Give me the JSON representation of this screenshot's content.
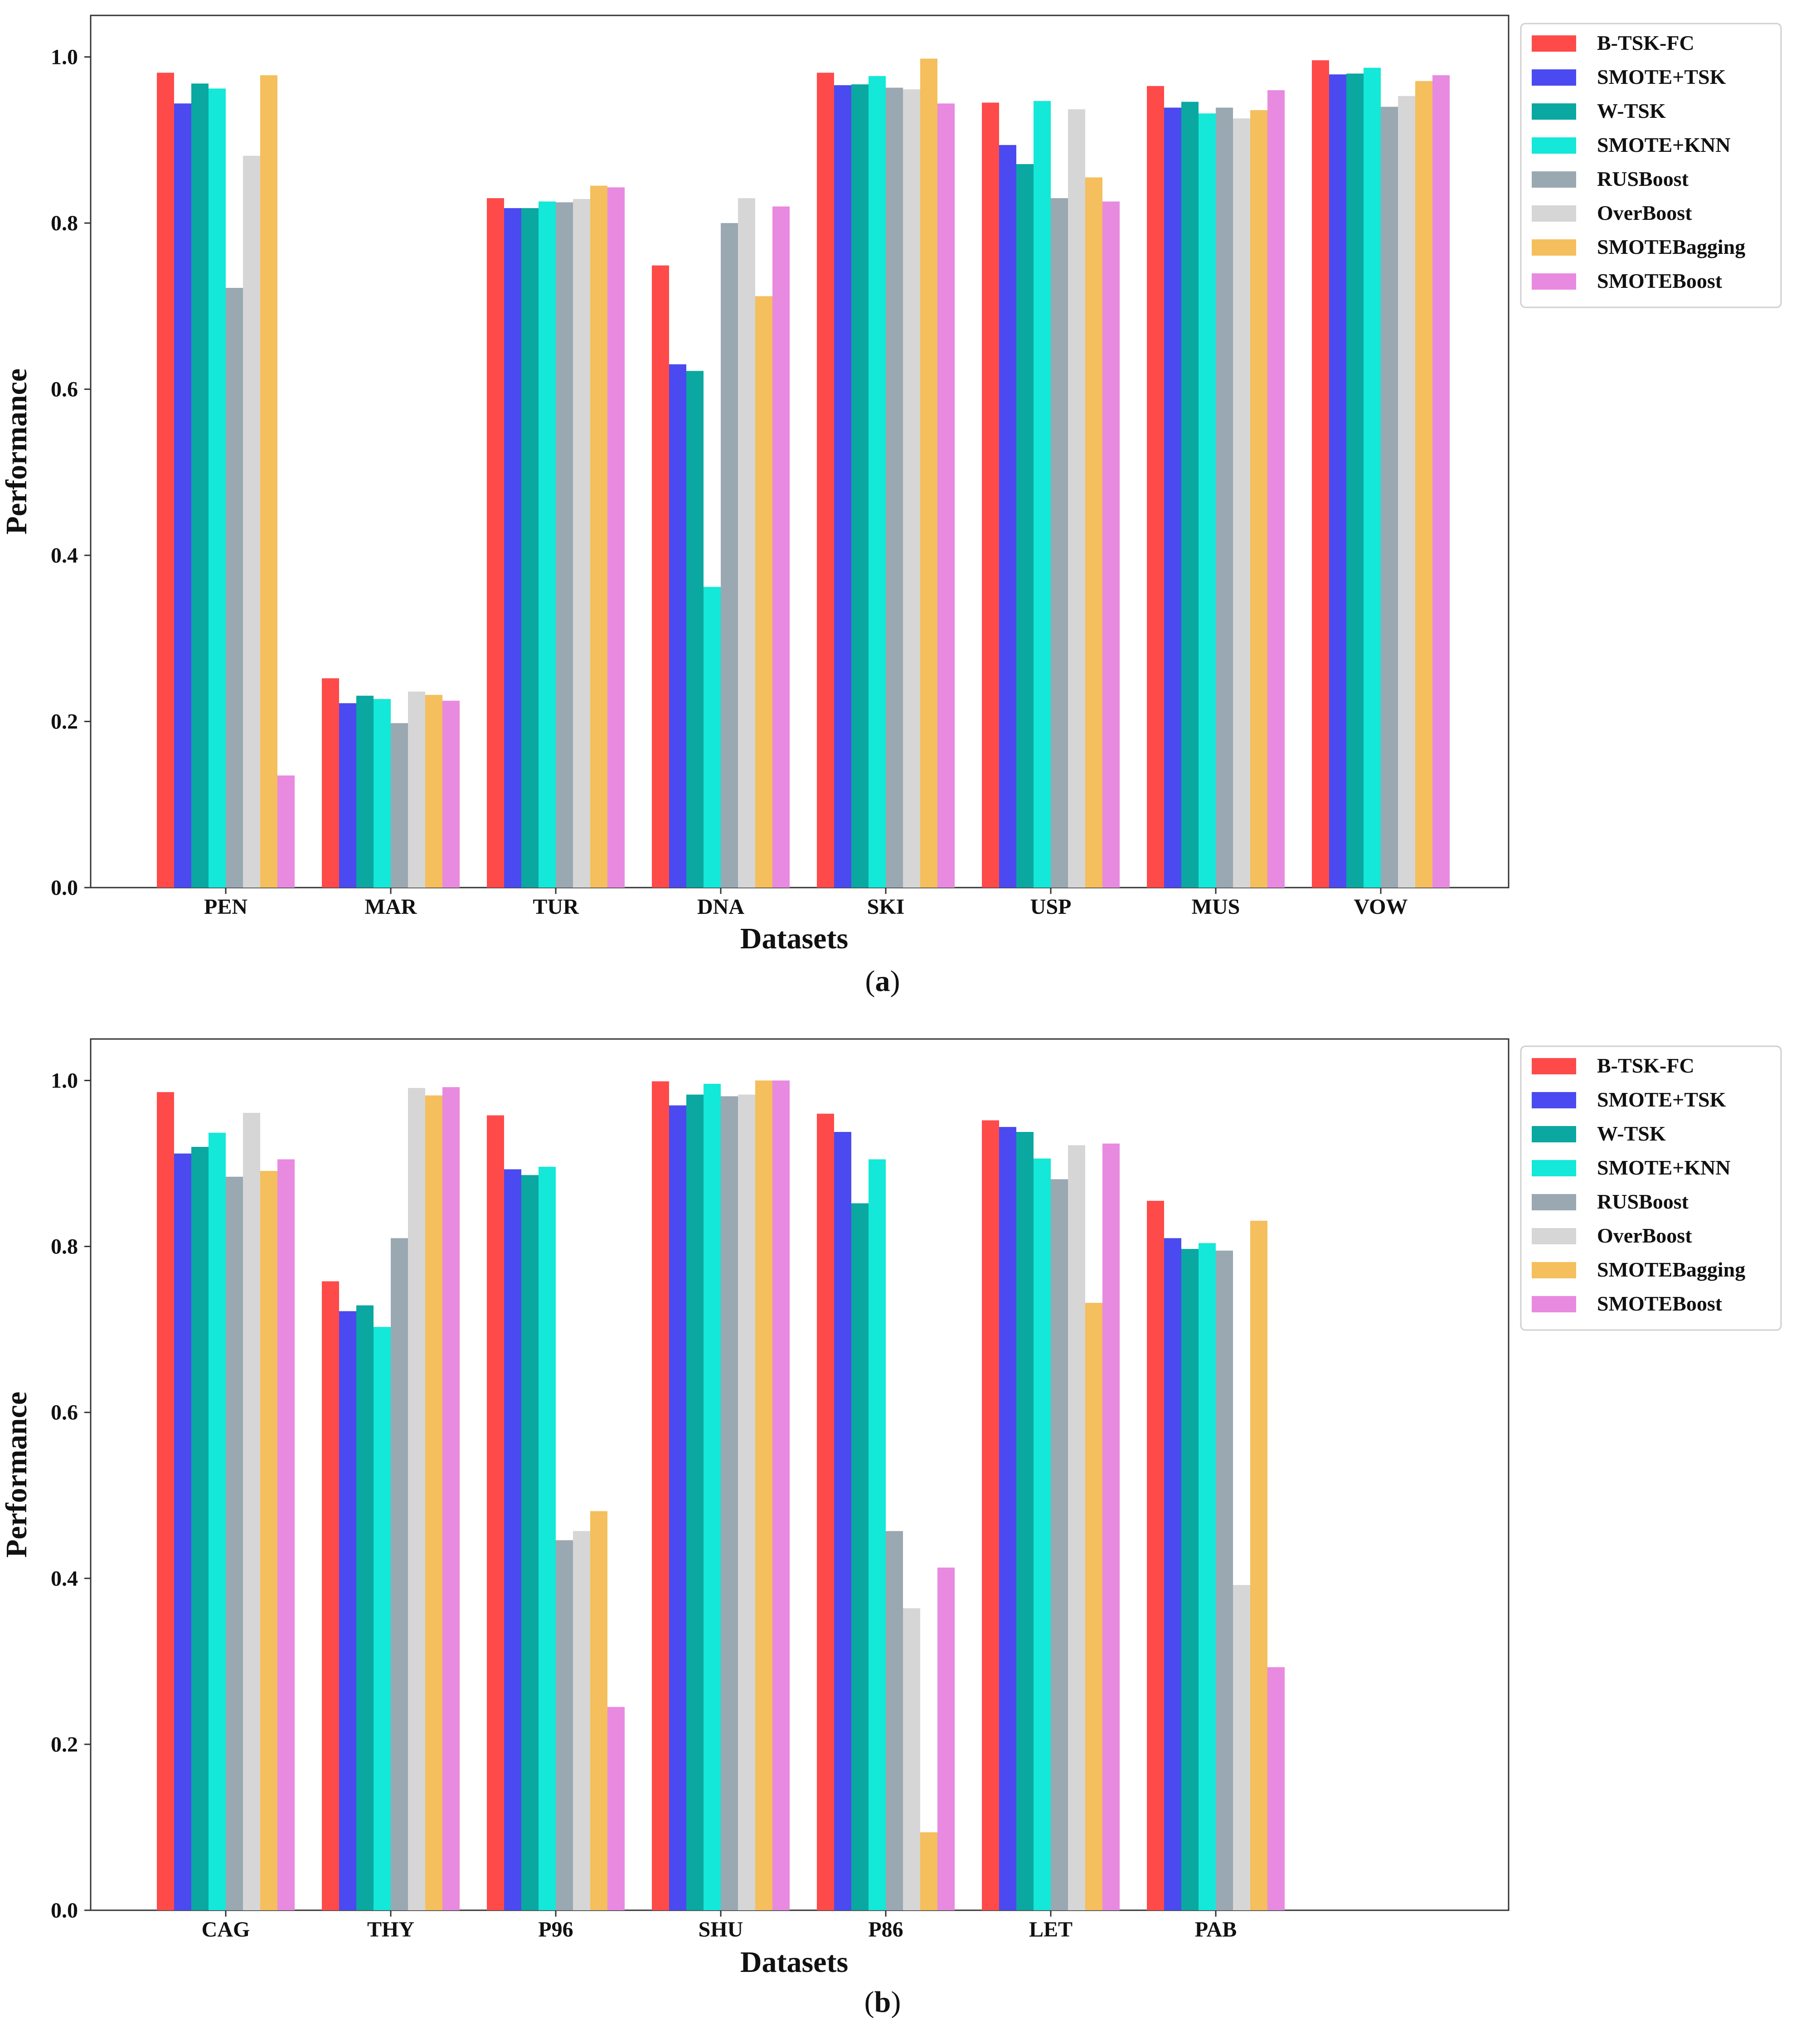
{
  "chart_data": [
    {
      "type": "bar",
      "caption": "a",
      "xlabel": "Datasets",
      "ylabel": "Performance",
      "ylim": [
        0,
        1.05
      ],
      "yticks": [
        "0.0",
        "0.2",
        "0.4",
        "0.6",
        "0.8",
        "1.0"
      ],
      "legend_position": "outside-right-top",
      "categories": [
        "PEN",
        "MAR",
        "TUR",
        "DNA",
        "SKI",
        "USP",
        "MUS",
        "VOW"
      ],
      "series": [
        {
          "name": "B-TSK-FC",
          "color": "#ff4a4a",
          "values": [
            0.981,
            0.252,
            0.83,
            0.749,
            0.981,
            0.945,
            0.965,
            0.996
          ]
        },
        {
          "name": "SMOTE+TSK",
          "color": "#4a4af0",
          "values": [
            0.944,
            0.222,
            0.818,
            0.63,
            0.966,
            0.894,
            0.939,
            0.979
          ]
        },
        {
          "name": "W-TSK",
          "color": "#0aa8a0",
          "values": [
            0.968,
            0.231,
            0.818,
            0.622,
            0.967,
            0.871,
            0.946,
            0.98
          ]
        },
        {
          "name": "SMOTE+KNN",
          "color": "#14e8d8",
          "values": [
            0.962,
            0.227,
            0.826,
            0.362,
            0.977,
            0.947,
            0.932,
            0.987
          ]
        },
        {
          "name": "RUSBoost",
          "color": "#9aa8b2",
          "values": [
            0.722,
            0.198,
            0.825,
            0.8,
            0.963,
            0.83,
            0.939,
            0.94
          ]
        },
        {
          "name": "OverBoost",
          "color": "#d6d6d6",
          "values": [
            0.881,
            0.236,
            0.829,
            0.83,
            0.961,
            0.937,
            0.926,
            0.953
          ]
        },
        {
          "name": "SMOTEBagging",
          "color": "#f4bf5c",
          "values": [
            0.978,
            0.232,
            0.845,
            0.712,
            0.998,
            0.855,
            0.936,
            0.971
          ]
        },
        {
          "name": "SMOTEBoost",
          "color": "#e88ae0",
          "values": [
            0.135,
            0.225,
            0.843,
            0.82,
            0.944,
            0.826,
            0.96,
            0.978
          ]
        }
      ]
    },
    {
      "type": "bar",
      "caption": "b",
      "xlabel": "Datasets",
      "ylabel": "Performance",
      "ylim": [
        0,
        1.05
      ],
      "yticks": [
        "0.0",
        "0.2",
        "0.4",
        "0.6",
        "0.8",
        "1.0"
      ],
      "legend_position": "outside-right-top",
      "categories": [
        "CAG",
        "THY",
        "P96",
        "SHU",
        "P86",
        "LET",
        "PAB"
      ],
      "series": [
        {
          "name": "B-TSK-FC",
          "color": "#ff4a4a",
          "values": [
            0.986,
            0.758,
            0.958,
            0.999,
            0.96,
            0.952,
            0.855
          ]
        },
        {
          "name": "SMOTE+TSK",
          "color": "#4a4af0",
          "values": [
            0.912,
            0.722,
            0.893,
            0.97,
            0.938,
            0.944,
            0.81
          ]
        },
        {
          "name": "W-TSK",
          "color": "#0aa8a0",
          "values": [
            0.92,
            0.729,
            0.886,
            0.983,
            0.852,
            0.938,
            0.797
          ]
        },
        {
          "name": "SMOTE+KNN",
          "color": "#14e8d8",
          "values": [
            0.937,
            0.703,
            0.896,
            0.996,
            0.905,
            0.906,
            0.804
          ]
        },
        {
          "name": "RUSBoost",
          "color": "#9aa8b2",
          "values": [
            0.884,
            0.81,
            0.446,
            0.981,
            0.457,
            0.881,
            0.795
          ]
        },
        {
          "name": "OverBoost",
          "color": "#d6d6d6",
          "values": [
            0.961,
            0.991,
            0.457,
            0.983,
            0.364,
            0.922,
            0.392
          ]
        },
        {
          "name": "SMOTEBagging",
          "color": "#f4bf5c",
          "values": [
            0.891,
            0.982,
            0.481,
            1.0,
            0.094,
            0.732,
            0.831
          ]
        },
        {
          "name": "SMOTEBoost",
          "color": "#e88ae0",
          "values": [
            0.905,
            0.992,
            0.245,
            1.0,
            0.413,
            0.924,
            0.293
          ]
        }
      ]
    }
  ]
}
